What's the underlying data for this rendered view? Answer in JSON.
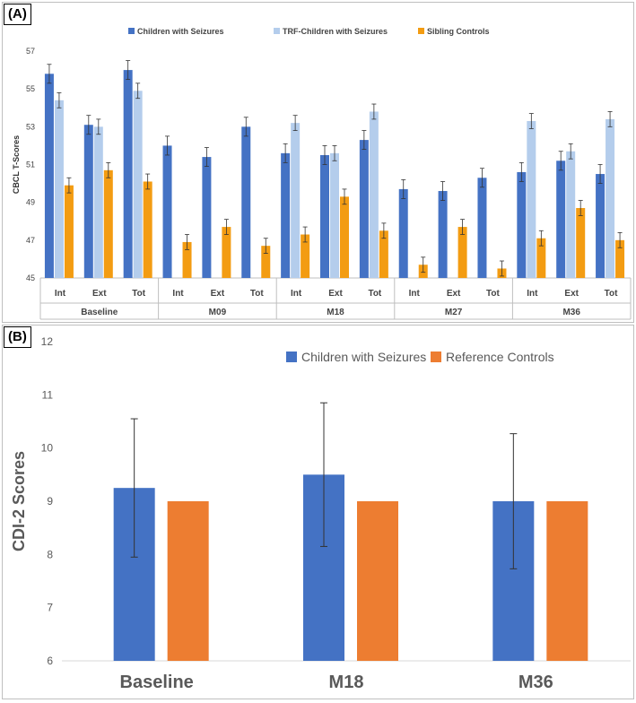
{
  "chart_data": [
    {
      "panel": "(A)",
      "type": "bar",
      "ylabel": "CBCL T-Scores",
      "ylim": [
        45,
        57
      ],
      "yticks": [
        45,
        47,
        49,
        51,
        53,
        55,
        57
      ],
      "legend": "top",
      "grid": false,
      "groups": [
        "Baseline",
        "M09",
        "M18",
        "M27",
        "M36"
      ],
      "subcategories": [
        "Int",
        "Ext",
        "Tot"
      ],
      "series": [
        {
          "name": "Children with Seizures",
          "color": "#4472C4",
          "values": [
            55.8,
            53.1,
            56.0,
            52.0,
            51.4,
            53.0,
            51.6,
            51.5,
            52.3,
            49.7,
            49.6,
            50.3,
            50.6,
            51.2,
            50.5
          ],
          "errors": [
            0.5,
            0.5,
            0.5,
            0.5,
            0.5,
            0.5,
            0.5,
            0.5,
            0.5,
            0.5,
            0.5,
            0.5,
            0.5,
            0.5,
            0.5
          ]
        },
        {
          "name": "TRF-Children with Seizures",
          "color": "#B4CDEC",
          "values": [
            54.4,
            53.0,
            54.9,
            null,
            null,
            null,
            53.2,
            51.6,
            53.8,
            null,
            null,
            null,
            53.3,
            51.7,
            53.4
          ],
          "errors": [
            0.4,
            0.4,
            0.4,
            null,
            null,
            null,
            0.4,
            0.4,
            0.4,
            null,
            null,
            null,
            0.4,
            0.4,
            0.4
          ]
        },
        {
          "name": "Sibling Controls",
          "color": "#F39C12",
          "values": [
            49.9,
            50.7,
            50.1,
            46.9,
            47.7,
            46.7,
            47.3,
            49.3,
            47.5,
            45.7,
            47.7,
            45.5,
            47.1,
            48.7,
            47.0
          ],
          "errors": [
            0.4,
            0.4,
            0.4,
            0.4,
            0.4,
            0.4,
            0.4,
            0.4,
            0.4,
            0.4,
            0.4,
            0.4,
            0.4,
            0.4,
            0.4
          ]
        }
      ]
    },
    {
      "panel": "(B)",
      "type": "bar",
      "ylabel": "CDI-2 Scores",
      "ylim": [
        6,
        12
      ],
      "yticks": [
        6,
        7,
        8,
        9,
        10,
        11,
        12
      ],
      "legend": "top-right",
      "grid": false,
      "categories": [
        "Baseline",
        "M18",
        "M36"
      ],
      "series": [
        {
          "name": "Children with Seizures",
          "color": "#4472C4",
          "values": [
            9.25,
            9.5,
            9.0
          ],
          "errors": [
            1.3,
            1.35,
            1.27
          ]
        },
        {
          "name": "Reference Controls",
          "color": "#ED7D31",
          "values": [
            9.0,
            9.0,
            9.0
          ],
          "errors": [
            null,
            null,
            null
          ]
        }
      ]
    }
  ]
}
